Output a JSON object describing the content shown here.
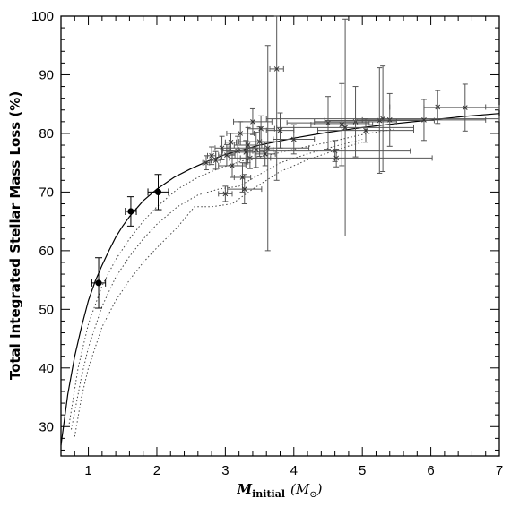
{
  "chart_data": {
    "type": "scatter",
    "title": "",
    "xlabel": "M",
    "xlabel_sub": "initial",
    "xlabel_unit": "(M",
    "xlabel_unit_sub": "⊙",
    "xlabel_close": ")",
    "ylabel": "Total Integrated Stellar Mass Loss (%)",
    "xlim": [
      0.6,
      7.0
    ],
    "ylim": [
      25,
      100
    ],
    "x_ticks": [
      1,
      2,
      3,
      4,
      5,
      6,
      7
    ],
    "y_ticks": [
      30,
      40,
      50,
      60,
      70,
      80,
      90,
      100
    ],
    "grid": false,
    "filled_points": [
      {
        "x": 1.15,
        "y": 54.5,
        "xerr": 0.1,
        "yerr": 4.3
      },
      {
        "x": 1.62,
        "y": 66.7,
        "xerr": 0.08,
        "yerr": 2.5
      },
      {
        "x": 2.02,
        "y": 70.0,
        "xerr": 0.15,
        "yerr": 3.0
      }
    ],
    "open_points": [
      {
        "x": 2.72,
        "y": 75.0,
        "xerr": 0.05,
        "yerr": 1.2
      },
      {
        "x": 2.8,
        "y": 76.2,
        "xerr": 0.06,
        "yerr": 1.5
      },
      {
        "x": 2.86,
        "y": 75.4,
        "xerr": 0.07,
        "yerr": 1.5
      },
      {
        "x": 2.95,
        "y": 77.5,
        "xerr": 0.1,
        "yerr": 2.0
      },
      {
        "x": 3.0,
        "y": 69.7,
        "xerr": 0.1,
        "yerr": 1.3
      },
      {
        "x": 3.02,
        "y": 76.3,
        "xerr": 0.12,
        "yerr": 1.8
      },
      {
        "x": 3.08,
        "y": 78.5,
        "xerr": 0.08,
        "yerr": 1.5
      },
      {
        "x": 3.1,
        "y": 74.5,
        "xerr": 0.2,
        "yerr": 2.0
      },
      {
        "x": 3.18,
        "y": 77.0,
        "xerr": 0.22,
        "yerr": 2.5
      },
      {
        "x": 3.22,
        "y": 80.0,
        "xerr": 0.2,
        "yerr": 2.0
      },
      {
        "x": 3.25,
        "y": 72.5,
        "xerr": 0.12,
        "yerr": 2.5
      },
      {
        "x": 3.28,
        "y": 70.5,
        "xerr": 0.25,
        "yerr": 2.5
      },
      {
        "x": 3.3,
        "y": 76.8,
        "xerr": 0.28,
        "yerr": 2.0
      },
      {
        "x": 3.33,
        "y": 78.0,
        "xerr": 0.2,
        "yerr": 3.0
      },
      {
        "x": 3.36,
        "y": 75.8,
        "xerr": 0.3,
        "yerr": 1.8
      },
      {
        "x": 3.4,
        "y": 82.0,
        "xerr": 0.28,
        "yerr": 2.2
      },
      {
        "x": 3.45,
        "y": 77.2,
        "xerr": 0.25,
        "yerr": 3.0
      },
      {
        "x": 3.5,
        "y": 78.6,
        "xerr": 0.3,
        "yerr": 2.5
      },
      {
        "x": 3.52,
        "y": 80.8,
        "xerr": 0.2,
        "yerr": 2.2
      },
      {
        "x": 3.58,
        "y": 76.5,
        "xerr": 0.15,
        "yerr": 2.0
      },
      {
        "x": 3.62,
        "y": 77.5,
        "xerr": 0.6,
        "yerr": 17.5
      },
      {
        "x": 3.75,
        "y": 91.0,
        "xerr": 0.1,
        "yerr": 19.0
      },
      {
        "x": 3.8,
        "y": 80.5,
        "xerr": 0.2,
        "yerr": 3.0
      },
      {
        "x": 4.0,
        "y": 79.0,
        "xerr": 0.3,
        "yerr": 2.5
      },
      {
        "x": 4.5,
        "y": 81.8,
        "xerr": 0.6,
        "yerr": 4.5
      },
      {
        "x": 4.6,
        "y": 77.0,
        "xerr": 1.1,
        "yerr": 1.8
      },
      {
        "x": 4.62,
        "y": 75.8,
        "xerr": 1.4,
        "yerr": 1.5
      },
      {
        "x": 4.7,
        "y": 81.5,
        "xerr": 0.45,
        "yerr": 7.0
      },
      {
        "x": 4.75,
        "y": 81.0,
        "xerr": 1.0,
        "yerr": 18.5
      },
      {
        "x": 4.9,
        "y": 82.0,
        "xerr": 0.6,
        "yerr": 6.0
      },
      {
        "x": 5.05,
        "y": 80.5,
        "xerr": 0.7,
        "yerr": 2.0
      },
      {
        "x": 5.25,
        "y": 82.2,
        "xerr": 0.8,
        "yerr": 9.0
      },
      {
        "x": 5.3,
        "y": 82.5,
        "xerr": 1.7,
        "yerr": 9.0
      },
      {
        "x": 5.4,
        "y": 82.3,
        "xerr": 0.5,
        "yerr": 4.5
      },
      {
        "x": 5.9,
        "y": 82.3,
        "xerr": 0.9,
        "yerr": 3.5
      },
      {
        "x": 6.1,
        "y": 84.5,
        "xerr": 0.7,
        "yerr": 2.8
      },
      {
        "x": 6.5,
        "y": 84.4,
        "xerr": 0.6,
        "yerr": 4.0
      }
    ],
    "fit_curve": [
      [
        0.6,
        26.8
      ],
      [
        0.7,
        35.5
      ],
      [
        0.8,
        42.0
      ],
      [
        0.9,
        47.0
      ],
      [
        1.0,
        51.5
      ],
      [
        1.1,
        54.8
      ],
      [
        1.2,
        57.5
      ],
      [
        1.3,
        60.0
      ],
      [
        1.4,
        62.3
      ],
      [
        1.5,
        64.2
      ],
      [
        1.6,
        65.8
      ],
      [
        1.8,
        68.5
      ],
      [
        2.0,
        70.5
      ],
      [
        2.25,
        72.5
      ],
      [
        2.5,
        74.0
      ],
      [
        2.75,
        75.3
      ],
      [
        3.0,
        76.4
      ],
      [
        3.25,
        77.2
      ],
      [
        3.5,
        78.0
      ],
      [
        4.0,
        79.2
      ],
      [
        4.5,
        80.2
      ],
      [
        5.0,
        81.0
      ],
      [
        5.5,
        81.7
      ],
      [
        6.0,
        82.3
      ],
      [
        6.5,
        82.9
      ],
      [
        7.0,
        83.4
      ]
    ],
    "dotted_curves": [
      [
        [
          0.72,
          30.5
        ],
        [
          0.85,
          40.0
        ],
        [
          1.0,
          47.5
        ],
        [
          1.2,
          54.0
        ],
        [
          1.4,
          58.5
        ],
        [
          1.6,
          62.0
        ],
        [
          1.8,
          65.0
        ],
        [
          2.0,
          67.5
        ],
        [
          2.3,
          70.5
        ],
        [
          2.6,
          72.5
        ],
        [
          2.9,
          74.0
        ],
        [
          3.3,
          75.5
        ],
        [
          3.6,
          76.2
        ],
        [
          4.0,
          77.3
        ],
        [
          4.5,
          78.5
        ],
        [
          5.0,
          79.8
        ],
        [
          5.5,
          80.8
        ]
      ],
      [
        [
          0.75,
          29.5
        ],
        [
          0.9,
          38.5
        ],
        [
          1.0,
          43.5
        ],
        [
          1.2,
          50.5
        ],
        [
          1.4,
          55.5
        ],
        [
          1.6,
          59.0
        ],
        [
          1.8,
          62.0
        ],
        [
          2.0,
          64.5
        ],
        [
          2.3,
          67.5
        ],
        [
          2.6,
          69.5
        ],
        [
          2.9,
          70.5
        ],
        [
          3.2,
          71.0
        ],
        [
          3.5,
          73.0
        ],
        [
          3.8,
          75.0
        ],
        [
          4.2,
          76.5
        ],
        [
          4.6,
          77.8
        ],
        [
          5.0,
          79.0
        ]
      ],
      [
        [
          0.8,
          28.3
        ],
        [
          0.9,
          35.0
        ],
        [
          1.0,
          40.0
        ],
        [
          1.2,
          47.0
        ],
        [
          1.4,
          51.5
        ],
        [
          1.6,
          55.0
        ],
        [
          1.8,
          58.0
        ],
        [
          2.0,
          60.5
        ],
        [
          2.3,
          64.0
        ],
        [
          2.55,
          67.5
        ],
        [
          2.8,
          67.5
        ],
        [
          3.1,
          68.0
        ],
        [
          3.4,
          70.5
        ],
        [
          3.8,
          73.5
        ],
        [
          4.2,
          75.5
        ],
        [
          4.7,
          77.5
        ],
        [
          5.0,
          78.5
        ]
      ]
    ]
  }
}
